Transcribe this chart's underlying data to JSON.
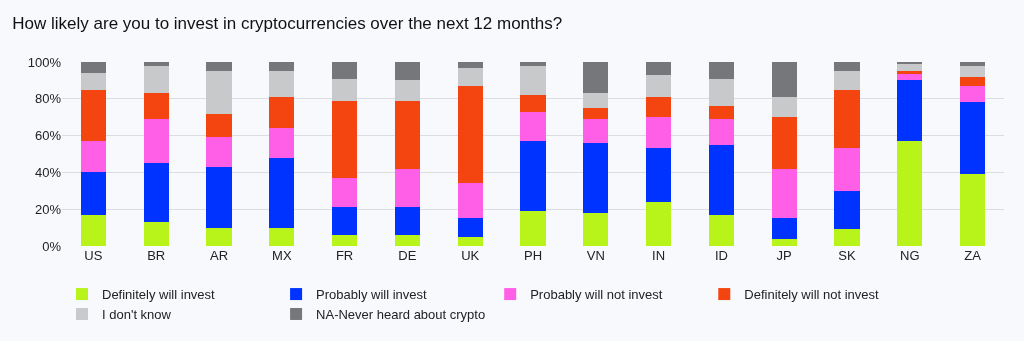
{
  "chart_data": {
    "type": "bar",
    "stacked": true,
    "title": "How likely are you to invest in cryptocurrencies over the next 12 months?",
    "categories": [
      "US",
      "BR",
      "AR",
      "MX",
      "FR",
      "DE",
      "UK",
      "PH",
      "VN",
      "IN",
      "ID",
      "JP",
      "SK",
      "NG",
      "ZA"
    ],
    "series": [
      {
        "name": "Definitely will invest",
        "color": "#b8f31a",
        "values": [
          17,
          13,
          10,
          10,
          6,
          6,
          5,
          19,
          18,
          24,
          17,
          4,
          9,
          57,
          39
        ]
      },
      {
        "name": "Probably will invest",
        "color": "#0033ff",
        "values": [
          23,
          32,
          33,
          38,
          15,
          15,
          10,
          38,
          38,
          29,
          38,
          11,
          21,
          33,
          39
        ]
      },
      {
        "name": "Probably will not invest",
        "color": "#ff5fe6",
        "values": [
          17,
          24,
          16,
          16,
          16,
          21,
          19,
          16,
          13,
          17,
          14,
          27,
          23,
          4,
          9
        ]
      },
      {
        "name": "Definitely will not invest",
        "color": "#f4440f",
        "values": [
          28,
          14,
          13,
          17,
          42,
          37,
          53,
          9,
          6,
          11,
          7,
          28,
          32,
          1,
          5
        ]
      },
      {
        "name": "I don't know",
        "color": "#c8c9cb",
        "values": [
          9,
          15,
          23,
          14,
          12,
          11,
          10,
          16,
          8,
          12,
          15,
          11,
          10,
          4,
          6
        ]
      },
      {
        "name": "NA-Never heard about crypto",
        "color": "#76777b",
        "values": [
          6,
          2,
          5,
          5,
          9,
          10,
          3,
          2,
          17,
          7,
          9,
          19,
          5,
          1,
          2
        ]
      }
    ],
    "ylim": [
      0,
      100
    ],
    "yticks": [
      {
        "value": 0,
        "label": "0%"
      },
      {
        "value": 20,
        "label": "20%"
      },
      {
        "value": 40,
        "label": "40%"
      },
      {
        "value": 60,
        "label": "60%"
      },
      {
        "value": 80,
        "label": "80%"
      },
      {
        "value": 100,
        "label": "100%"
      }
    ],
    "grid": "y",
    "legend": "bottom"
  }
}
